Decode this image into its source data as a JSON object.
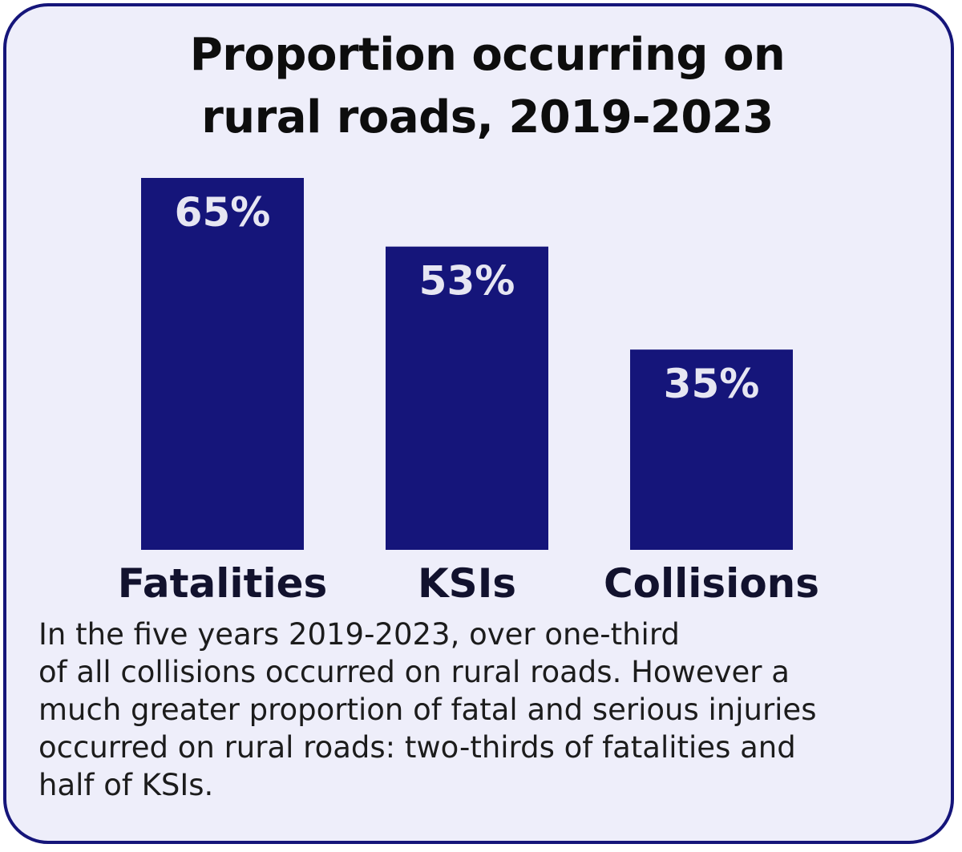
{
  "colors": {
    "border": "#15157a",
    "background": "#eeeefa",
    "bar": "#15157a",
    "bar_label": "#e6e6f2",
    "category_label": "#12122e"
  },
  "title_lines": [
    "Proportion occurring on",
    "rural roads, 2019-2023"
  ],
  "caption_lines": [
    "In the five years 2019-2023, over one-third",
    "of all collisions occurred on rural roads. However a",
    "much greater proportion of fatal and serious injuries",
    "occurred on rural roads: two-thirds of fatalities and",
    "half of KSIs."
  ],
  "chart_data": {
    "type": "bar",
    "title": "Proportion occurring on rural roads, 2019-2023",
    "categories": [
      "Fatalities",
      "KSIs",
      "Collisions"
    ],
    "values": [
      65,
      53,
      35
    ],
    "data_labels": [
      "65%",
      "53%",
      "35%"
    ],
    "ylabel": "",
    "xlabel": "",
    "ylim": [
      0,
      65
    ],
    "grid": false,
    "legend": "none"
  }
}
